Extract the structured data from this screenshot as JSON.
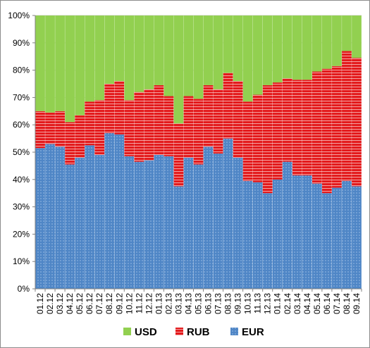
{
  "chart_data": {
    "type": "bar",
    "stacked": true,
    "percent": true,
    "categories": [
      "01.12",
      "02.12",
      "03.12",
      "04.12",
      "05.12",
      "06.12",
      "07.12",
      "08.12",
      "09.12",
      "10.12",
      "11.12",
      "12.12",
      "01.13",
      "02.13",
      "03.13",
      "04.13",
      "05.13",
      "06.13",
      "07.13",
      "08.13",
      "09.13",
      "10.13",
      "11.13",
      "12.13",
      "01.14",
      "02.14",
      "03.14",
      "04.14",
      "05.14",
      "06.14",
      "07.14",
      "08.14",
      "09.14"
    ],
    "series": [
      {
        "name": "EUR",
        "color": "#4f86c6",
        "pattern": "dots",
        "values": [
          51.5,
          53,
          52,
          45.5,
          48,
          52.5,
          49,
          57,
          56.5,
          48.5,
          46.5,
          47,
          49,
          48.5,
          37.5,
          48,
          45.5,
          52,
          49.5,
          55,
          48,
          39.5,
          39,
          35,
          40,
          46.5,
          41.5,
          41.5,
          38.5,
          35,
          37,
          39.5,
          37.5
        ]
      },
      {
        "name": "RUB",
        "color": "#e31a1c",
        "pattern": "horizontal-lines",
        "values": [
          13.5,
          11.5,
          13,
          15.5,
          15.5,
          16,
          20,
          18,
          19.5,
          20.5,
          25.5,
          26,
          25.5,
          22,
          23,
          22.5,
          24,
          22.5,
          23.5,
          24,
          28,
          29,
          32,
          39.5,
          35.5,
          30.5,
          35,
          35,
          41,
          45.5,
          44.5,
          47.5,
          47
        ]
      },
      {
        "name": "USD",
        "color": "#92d050",
        "pattern": "solid",
        "values": [
          35,
          35.5,
          35,
          39,
          36.5,
          31.5,
          31,
          25,
          24,
          31,
          28,
          27,
          25.5,
          29.5,
          39.5,
          29.5,
          30.5,
          25.5,
          27,
          21,
          24,
          31.5,
          29,
          25.5,
          24.5,
          23,
          23.5,
          23.5,
          20.5,
          19.5,
          18.5,
          13,
          15.5
        ]
      }
    ],
    "y_ticks": [
      "0%",
      "10%",
      "20%",
      "30%",
      "40%",
      "50%",
      "60%",
      "70%",
      "80%",
      "90%",
      "100%"
    ],
    "ylim": [
      0,
      100
    ],
    "legend": {
      "position": "bottom",
      "items": [
        {
          "label": "USD",
          "color": "#92d050"
        },
        {
          "label": "RUB",
          "color": "#e31a1c"
        },
        {
          "label": "EUR",
          "color": "#4f86c6"
        }
      ]
    }
  }
}
